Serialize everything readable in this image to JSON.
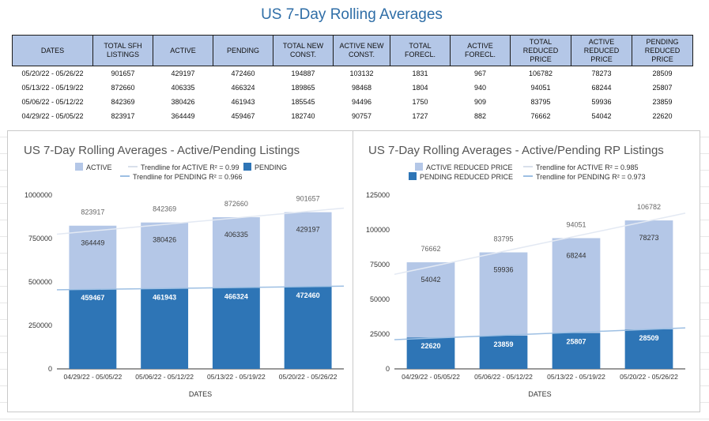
{
  "page_title": "US 7-Day Rolling Averages",
  "table": {
    "headers": [
      "DATES",
      "TOTAL SFH LISTINGS",
      "ACTIVE",
      "PENDING",
      "TOTAL NEW CONST.",
      "ACTIVE NEW CONST.",
      "TOTAL FORECL.",
      "ACTIVE FORECL.",
      "TOTAL REDUCED PRICE",
      "ACTIVE REDUCED PRICE",
      "PENDING REDUCED PRICE"
    ],
    "rows": [
      [
        "05/20/22 - 05/26/22",
        "901657",
        "429197",
        "472460",
        "194887",
        "103132",
        "1831",
        "967",
        "106782",
        "78273",
        "28509"
      ],
      [
        "05/13/22 - 05/19/22",
        "872660",
        "406335",
        "466324",
        "189865",
        "98468",
        "1804",
        "940",
        "94051",
        "68244",
        "25807"
      ],
      [
        "05/06/22 - 05/12/22",
        "842369",
        "380426",
        "461943",
        "185545",
        "94496",
        "1750",
        "909",
        "83795",
        "59936",
        "23859"
      ],
      [
        "04/29/22 - 05/05/22",
        "823917",
        "364449",
        "459467",
        "182740",
        "90757",
        "1727",
        "882",
        "76662",
        "54042",
        "22620"
      ]
    ]
  },
  "chart_data": [
    {
      "type": "bar",
      "stacked": true,
      "title": "US 7-Day Rolling Averages - Active/Pending Listings",
      "xlabel": "DATES",
      "ylabel": "",
      "categories": [
        "04/29/22 - 05/05/22",
        "05/06/22 - 05/12/22",
        "05/13/22 - 05/19/22",
        "05/20/22 - 05/26/22"
      ],
      "series": [
        {
          "name": "PENDING",
          "values": [
            459467,
            461943,
            466324,
            472460
          ],
          "color": "#2e75b6"
        },
        {
          "name": "ACTIVE",
          "values": [
            364449,
            380426,
            406335,
            429197
          ],
          "color": "#b4c7e7"
        }
      ],
      "totals": [
        823917,
        842369,
        872660,
        901657
      ],
      "trendlines": [
        {
          "name": "Trendline for ACTIVE R² = 0.99",
          "start": 775000,
          "end": 925000,
          "color": "#e3e9f3"
        },
        {
          "name": "Trendline for PENDING R² = 0.966",
          "start": 455000,
          "end": 476000,
          "color": "#9dbfe3"
        }
      ],
      "legend": [
        "ACTIVE",
        "Trendline for ACTIVE R² = 0.99",
        "PENDING",
        "Trendline for PENDING R² = 0.966"
      ],
      "yticks": [
        0,
        250000,
        500000,
        750000,
        1000000
      ],
      "ylim": [
        0,
        1000000
      ],
      "legend_position": "top"
    },
    {
      "type": "bar",
      "stacked": true,
      "title": "US 7-Day Rolling Averages - Active/Pending RP Listings",
      "xlabel": "DATES",
      "ylabel": "",
      "categories": [
        "04/29/22 - 05/05/22",
        "05/06/22 - 05/12/22",
        "05/13/22 - 05/19/22",
        "05/20/22 - 05/26/22"
      ],
      "series": [
        {
          "name": "PENDING REDUCED PRICE",
          "values": [
            22620,
            23859,
            25807,
            28509
          ],
          "color": "#2e75b6"
        },
        {
          "name": "ACTIVE REDUCED PRICE",
          "values": [
            54042,
            59936,
            68244,
            78273
          ],
          "color": "#b4c7e7"
        }
      ],
      "totals": [
        76662,
        83795,
        94051,
        106782
      ],
      "trendlines": [
        {
          "name": "Trendline for ACTIVE R² = 0.985",
          "start": 68000,
          "end": 112000,
          "color": "#e3e9f3"
        },
        {
          "name": "Trendline for PENDING R² = 0.973",
          "start": 21000,
          "end": 29500,
          "color": "#9dbfe3"
        }
      ],
      "legend": [
        "ACTIVE REDUCED PRICE",
        "Trendline for ACTIVE R² = 0.985",
        "PENDING REDUCED PRICE",
        "Trendline for PENDING R² = 0.973"
      ],
      "yticks": [
        0,
        25000,
        50000,
        75000,
        100000,
        125000
      ],
      "ylim": [
        0,
        125000
      ],
      "legend_position": "top"
    }
  ]
}
